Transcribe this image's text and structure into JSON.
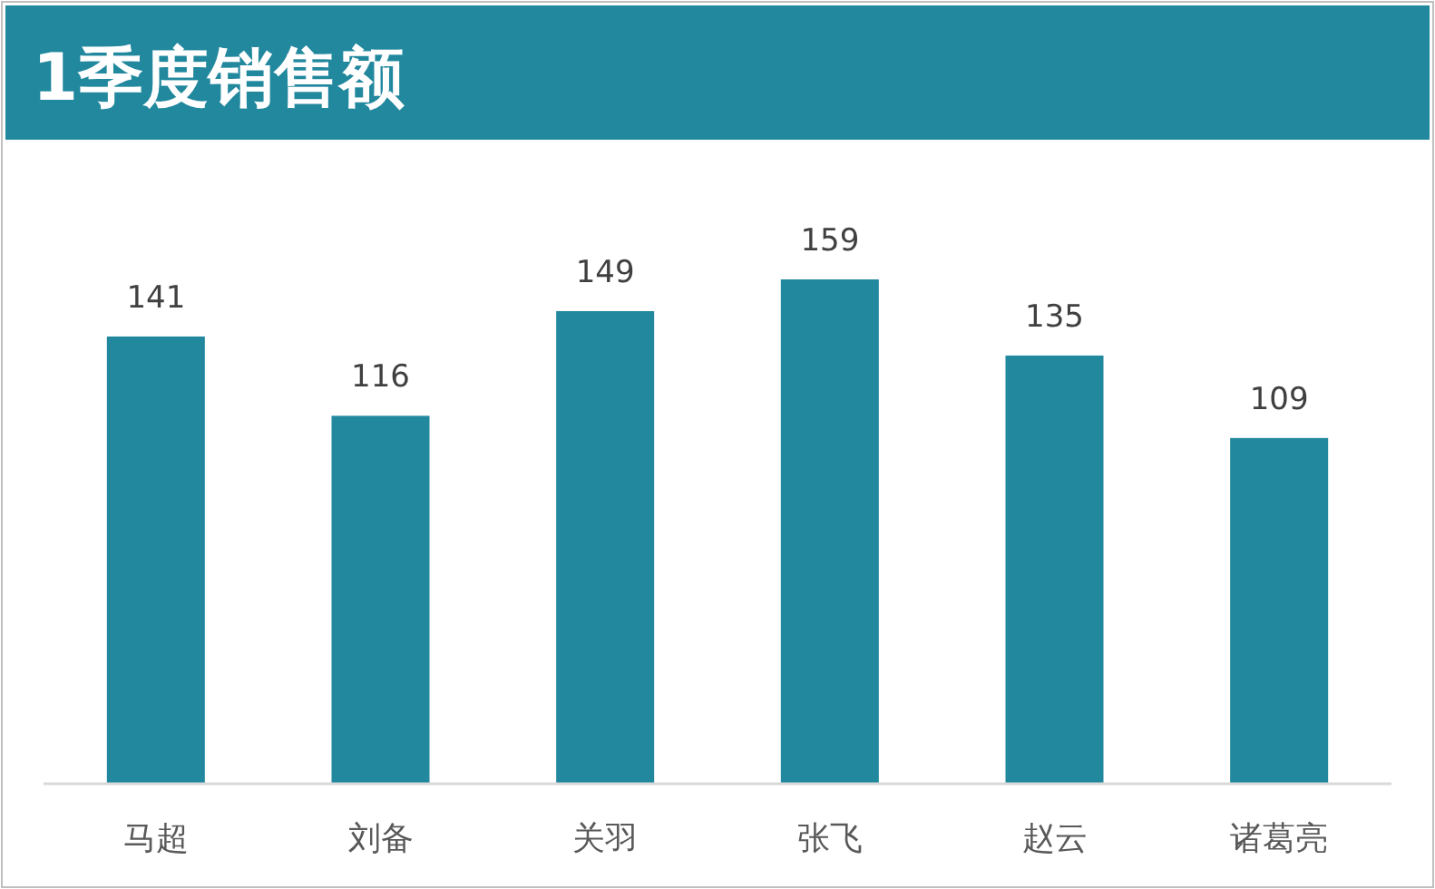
{
  "chart_data": {
    "type": "bar",
    "title": "1季度销售额",
    "categories": [
      "马超",
      "刘备",
      "关羽",
      "张飞",
      "赵云",
      "诸葛亮"
    ],
    "values": [
      141,
      116,
      149,
      159,
      135,
      109
    ],
    "color": "#22889e",
    "data_labels": true
  }
}
